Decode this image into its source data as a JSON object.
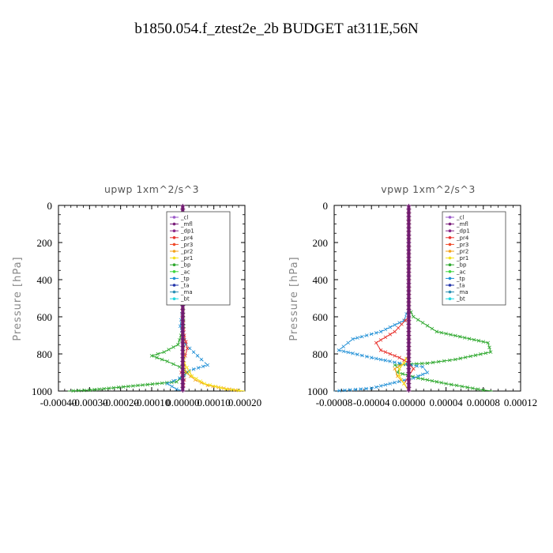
{
  "figure": {
    "title": "b1850.054.f_ztest2e_2b  BUDGET at311E,56N"
  },
  "colors": {
    "_cl": "#9b59c9",
    "_mfl": "#7a1f7a",
    "_dp1": "#8a2a8a",
    "_pr4": "#e8322d",
    "_pr3": "#f04a2a",
    "_pr2": "#f3a11a",
    "_pr1": "#f4e01a",
    "_bp": "#2ea82e",
    "_ac": "#3ed63e",
    "_tp": "#1f8fd6",
    "_ta": "#2233aa",
    "_ma": "#2a8fb5",
    "_bt": "#22d6e0"
  },
  "chart_data": [
    {
      "type": "line",
      "title": "upwp   1xm^2/s^3",
      "ylabel": "Pressure  [hPa]",
      "xlabel": "",
      "xlim": [
        -0.0004,
        0.0002
      ],
      "ylim": [
        1000,
        0
      ],
      "xticks": [
        -0.0004,
        -0.0003,
        -0.0002,
        -0.0001,
        0.0,
        0.0001,
        0.0002
      ],
      "xtick_labels": [
        "-0.00040",
        "-0.00030",
        "-0.00020",
        "-0.00010",
        "0.00000",
        "0.00010",
        "0.00020"
      ],
      "yticks": [
        0,
        200,
        400,
        600,
        800,
        1000
      ],
      "ytick_labels": [
        "0",
        "200",
        "400",
        "600",
        "800",
        "1000"
      ],
      "legend_placement": "top-right",
      "legend": [
        "_cl",
        "_mfl",
        "_dp1",
        "_pr4",
        "_pr3",
        "_pr2",
        "_pr1",
        "_bp",
        "_ac",
        "_tp",
        "_ta",
        "_ma",
        "_bt"
      ],
      "series": [
        {
          "name": "_bp",
          "points": [
            [
              0,
              0
            ],
            [
              0,
              500
            ],
            [
              3e-06,
              650
            ],
            [
              -1.5e-05,
              750
            ],
            [
              -6e-05,
              790
            ],
            [
              -0.0001,
              810
            ],
            [
              -5e-05,
              840
            ],
            [
              -1e-05,
              870
            ],
            [
              1.5e-05,
              900
            ],
            [
              -2e-05,
              950
            ],
            [
              -0.0003,
              995
            ],
            [
              -0.00037,
              1000
            ]
          ]
        },
        {
          "name": "_tp",
          "points": [
            [
              0,
              0
            ],
            [
              0,
              550
            ],
            [
              -8e-06,
              650
            ],
            [
              1e-05,
              750
            ],
            [
              6e-05,
              830
            ],
            [
              8e-05,
              860
            ],
            [
              2e-05,
              890
            ],
            [
              -1e-05,
              930
            ],
            [
              -5e-05,
              960
            ],
            [
              -2e-05,
              990
            ],
            [
              0,
              1000
            ]
          ]
        },
        {
          "name": "_pr4",
          "points": [
            [
              0,
              0
            ],
            [
              0,
              600
            ],
            [
              5e-06,
              700
            ],
            [
              1.5e-05,
              770
            ],
            [
              8e-06,
              810
            ],
            [
              0,
              850
            ],
            [
              -5e-06,
              900
            ],
            [
              5e-06,
              940
            ],
            [
              0,
              1000
            ]
          ]
        },
        {
          "name": "_pr2",
          "points": [
            [
              0,
              0
            ],
            [
              0,
              700
            ],
            [
              5e-06,
              850
            ],
            [
              1e-05,
              900
            ],
            [
              4e-05,
              940
            ],
            [
              8e-05,
              970
            ],
            [
              0.00015,
              990
            ],
            [
              0.00019,
              1000
            ]
          ]
        },
        {
          "name": "_pr1",
          "points": [
            [
              0,
              0
            ],
            [
              0,
              700
            ],
            [
              5e-06,
              850
            ],
            [
              3e-05,
              920
            ],
            [
              7e-05,
              960
            ],
            [
              0.00014,
              990
            ],
            [
              0.0002,
              1000
            ]
          ]
        },
        {
          "name": "_mfl",
          "points": [
            [
              0,
              0
            ],
            [
              0,
              1000
            ]
          ]
        }
      ]
    },
    {
      "type": "line",
      "title": "vpwp   1xm^2/s^3",
      "ylabel": "Pressure  [hPa]",
      "xlabel": "",
      "xlim": [
        -8e-05,
        0.00012
      ],
      "ylim": [
        1000,
        0
      ],
      "xticks": [
        -8e-05,
        -4e-05,
        0.0,
        4e-05,
        8e-05,
        0.00012
      ],
      "xtick_labels": [
        "-0.00008",
        "-0.00004",
        "0.00000",
        "0.00004",
        "0.00008",
        "0.00012"
      ],
      "yticks": [
        0,
        200,
        400,
        600,
        800,
        1000
      ],
      "ytick_labels": [
        "0",
        "200",
        "400",
        "600",
        "800",
        "1000"
      ],
      "legend_placement": "top-right",
      "legend": [
        "_cl",
        "_mfl",
        "_dp1",
        "_pr4",
        "_pr3",
        "_pr2",
        "_pr1",
        "_bp",
        "_ac",
        "_tp",
        "_ta",
        "_ma",
        "_bt"
      ],
      "series": [
        {
          "name": "_bp",
          "points": [
            [
              0,
              0
            ],
            [
              0,
              550
            ],
            [
              5e-06,
              600
            ],
            [
              3e-05,
              680
            ],
            [
              8.5e-05,
              740
            ],
            [
              8.8e-05,
              790
            ],
            [
              5e-05,
              830
            ],
            [
              2e-05,
              850
            ],
            [
              -1.5e-05,
              860
            ],
            [
              -1e-05,
              880
            ],
            [
              -1.2e-05,
              900
            ],
            [
              1e-05,
              930
            ],
            [
              4e-05,
              960
            ],
            [
              8e-05,
              995
            ],
            [
              9e-05,
              1000
            ]
          ]
        },
        {
          "name": "_tp",
          "points": [
            [
              0,
              0
            ],
            [
              0,
              550
            ],
            [
              -5e-06,
              620
            ],
            [
              -3e-05,
              680
            ],
            [
              -6e-05,
              720
            ],
            [
              -7.5e-05,
              780
            ],
            [
              -4e-05,
              820
            ],
            [
              -1e-05,
              850
            ],
            [
              1.5e-05,
              870
            ],
            [
              2e-05,
              900
            ],
            [
              5e-06,
              930
            ],
            [
              -2e-05,
              960
            ],
            [
              -4e-05,
              985
            ],
            [
              -8e-05,
              1000
            ]
          ]
        },
        {
          "name": "_pr4",
          "points": [
            [
              0,
              0
            ],
            [
              0,
              600
            ],
            [
              -1.5e-05,
              680
            ],
            [
              -3.5e-05,
              740
            ],
            [
              -3e-05,
              780
            ],
            [
              -1e-05,
              820
            ],
            [
              0,
              850
            ],
            [
              5e-06,
              880
            ],
            [
              0,
              920
            ],
            [
              -5e-06,
              960
            ],
            [
              0,
              1000
            ]
          ]
        },
        {
          "name": "_pr2",
          "points": [
            [
              0,
              0
            ],
            [
              0,
              800
            ],
            [
              -5e-06,
              850
            ],
            [
              -1.5e-05,
              880
            ],
            [
              -1.2e-05,
              920
            ],
            [
              -5e-06,
              960
            ],
            [
              0,
              1000
            ]
          ]
        },
        {
          "name": "_pr1",
          "points": [
            [
              0,
              0
            ],
            [
              0,
              800
            ],
            [
              -5e-06,
              850
            ],
            [
              -1e-05,
              880
            ],
            [
              -1e-05,
              920
            ],
            [
              -5e-06,
              960
            ],
            [
              0,
              1000
            ]
          ]
        },
        {
          "name": "_mfl",
          "points": [
            [
              0,
              0
            ],
            [
              0,
              1000
            ]
          ]
        }
      ]
    }
  ]
}
